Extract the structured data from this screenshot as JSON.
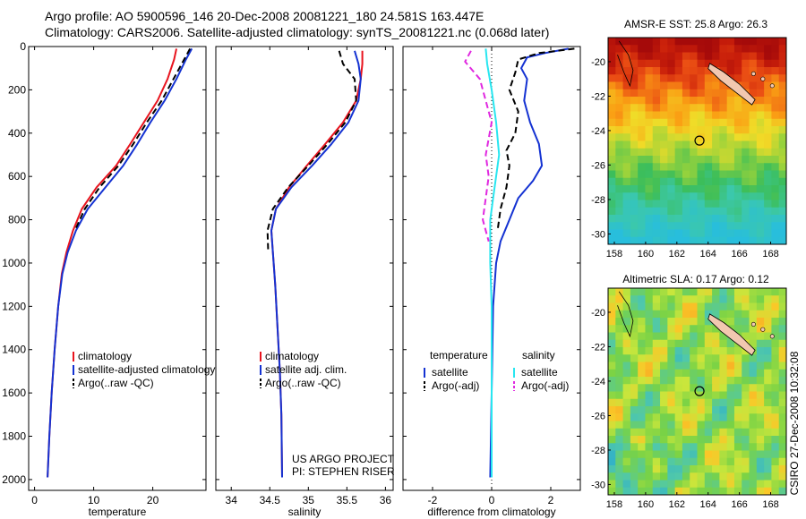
{
  "header": {
    "line1": "Argo profile: AO 5900596_146 20-Dec-2008 20081221_180 24.581S 163.447E",
    "line2": "Climatology: CARS2006. Satellite-adjusted climatology: synTS_20081221.nc (0.068d later)"
  },
  "credit": "CSIRO 27-Dec-2008 10:32:08",
  "project_note": [
    "US ARGO PROJECT",
    "PI: STEPHEN RISER"
  ],
  "colors": {
    "climatology": "#e8141e",
    "satellite": "#1432d2",
    "argo": "#000000",
    "cyan": "#28e6f0",
    "magenta": "#e028e0"
  },
  "chart_data": [
    {
      "type": "line",
      "xlabel": "temperature",
      "ylabel": "",
      "xlim": [
        -1,
        29
      ],
      "ylim": [
        2050,
        0
      ],
      "y_reversed": true,
      "xticks": [
        0,
        10,
        20
      ],
      "yticks": [
        0,
        200,
        400,
        600,
        800,
        1000,
        1200,
        1400,
        1600,
        1800,
        2000
      ],
      "legend": [
        "climatology",
        "satellite-adjusted climatology",
        "Argo(..raw -QC)"
      ],
      "series": [
        {
          "name": "climatology",
          "color": "#e8141e",
          "style": "solid",
          "points": [
            [
              24.0,
              10
            ],
            [
              23.6,
              60
            ],
            [
              22.5,
              150
            ],
            [
              20.8,
              250
            ],
            [
              18.5,
              350
            ],
            [
              16.2,
              450
            ],
            [
              13.8,
              550
            ],
            [
              10.5,
              650
            ],
            [
              8.0,
              750
            ],
            [
              6.5,
              850
            ],
            [
              5.4,
              950
            ],
            [
              4.6,
              1050
            ],
            [
              4.0,
              1200
            ],
            [
              3.4,
              1400
            ],
            [
              2.9,
              1600
            ],
            [
              2.5,
              1800
            ],
            [
              2.2,
              1990
            ]
          ]
        },
        {
          "name": "satellite-adjusted climatology",
          "color": "#1432d2",
          "style": "solid",
          "points": [
            [
              26.6,
              10
            ],
            [
              25.6,
              60
            ],
            [
              24.0,
              150
            ],
            [
              22.0,
              250
            ],
            [
              19.6,
              350
            ],
            [
              17.4,
              450
            ],
            [
              15.0,
              550
            ],
            [
              12.0,
              650
            ],
            [
              9.0,
              750
            ],
            [
              7.0,
              850
            ],
            [
              5.6,
              950
            ],
            [
              4.7,
              1050
            ],
            [
              4.0,
              1200
            ],
            [
              3.4,
              1400
            ],
            [
              2.9,
              1600
            ],
            [
              2.5,
              1800
            ],
            [
              2.2,
              1990
            ]
          ]
        },
        {
          "name": "Argo(..raw -QC)",
          "color": "#000000",
          "style": "dashed",
          "points": [
            [
              26.3,
              10
            ],
            [
              25.3,
              60
            ],
            [
              23.5,
              150
            ],
            [
              21.5,
              250
            ],
            [
              19.0,
              350
            ],
            [
              16.7,
              450
            ],
            [
              14.2,
              550
            ],
            [
              11.0,
              650
            ],
            [
              8.5,
              750
            ],
            [
              6.8,
              850
            ]
          ]
        }
      ]
    },
    {
      "type": "line",
      "xlabel": "salinity",
      "xlim": [
        33.8,
        36.1
      ],
      "ylim": [
        2050,
        0
      ],
      "y_reversed": true,
      "xticks": [
        34,
        34.5,
        35,
        35.5,
        36
      ],
      "legend": [
        "climatology",
        "satellite adj. clim.",
        "Argo(..raw -QC)"
      ],
      "series": [
        {
          "name": "climatology",
          "color": "#e8141e",
          "style": "solid",
          "points": [
            [
              35.7,
              20
            ],
            [
              35.7,
              80
            ],
            [
              35.68,
              150
            ],
            [
              35.62,
              250
            ],
            [
              35.45,
              350
            ],
            [
              35.22,
              450
            ],
            [
              34.98,
              550
            ],
            [
              34.75,
              650
            ],
            [
              34.58,
              750
            ],
            [
              34.52,
              850
            ],
            [
              34.54,
              950
            ],
            [
              34.57,
              1100
            ],
            [
              34.6,
              1300
            ],
            [
              34.63,
              1500
            ],
            [
              34.65,
              1700
            ],
            [
              34.66,
              1990
            ]
          ]
        },
        {
          "name": "satellite adj. clim.",
          "color": "#1432d2",
          "style": "solid",
          "points": [
            [
              35.6,
              20
            ],
            [
              35.65,
              80
            ],
            [
              35.68,
              150
            ],
            [
              35.65,
              250
            ],
            [
              35.52,
              350
            ],
            [
              35.3,
              450
            ],
            [
              35.05,
              550
            ],
            [
              34.78,
              650
            ],
            [
              34.58,
              750
            ],
            [
              34.52,
              850
            ],
            [
              34.54,
              950
            ],
            [
              34.57,
              1100
            ],
            [
              34.6,
              1300
            ],
            [
              34.63,
              1500
            ],
            [
              34.65,
              1700
            ],
            [
              34.66,
              1990
            ]
          ]
        },
        {
          "name": "Argo(..raw -QC)",
          "color": "#000000",
          "style": "dashed",
          "points": [
            [
              35.4,
              20
            ],
            [
              35.45,
              80
            ],
            [
              35.6,
              150
            ],
            [
              35.62,
              250
            ],
            [
              35.48,
              350
            ],
            [
              35.25,
              450
            ],
            [
              35.0,
              550
            ],
            [
              34.74,
              650
            ],
            [
              34.54,
              750
            ],
            [
              34.47,
              850
            ],
            [
              34.48,
              950
            ]
          ]
        }
      ]
    },
    {
      "type": "line",
      "xlabel": "difference from climatology",
      "xlim": [
        -3,
        3
      ],
      "ylim": [
        2050,
        0
      ],
      "y_reversed": true,
      "xticks": [
        -2,
        0,
        2
      ],
      "legend_title": [
        "temperature",
        "salinity"
      ],
      "legend": [
        "satellite",
        "Argo(-adj)",
        "satellite",
        "Argo(-adj)"
      ],
      "series": [
        {
          "name": "temperature satellite",
          "color": "#1432d2",
          "style": "solid",
          "points": [
            [
              2.6,
              10
            ],
            [
              1.8,
              30
            ],
            [
              1.2,
              50
            ],
            [
              1.0,
              100
            ],
            [
              1.2,
              150
            ],
            [
              1.1,
              250
            ],
            [
              1.3,
              350
            ],
            [
              1.6,
              450
            ],
            [
              1.7,
              550
            ],
            [
              1.4,
              620
            ],
            [
              0.9,
              700
            ],
            [
              0.6,
              800
            ],
            [
              0.3,
              900
            ],
            [
              0.15,
              1000
            ],
            [
              0.05,
              1200
            ],
            [
              0.0,
              1600
            ],
            [
              -0.05,
              1990
            ]
          ]
        },
        {
          "name": "temperature Argo(-adj)",
          "color": "#000000",
          "style": "dashed",
          "points": [
            [
              2.8,
              10
            ],
            [
              1.6,
              30
            ],
            [
              0.9,
              60
            ],
            [
              0.8,
              120
            ],
            [
              0.6,
              200
            ],
            [
              0.9,
              300
            ],
            [
              0.8,
              400
            ],
            [
              0.5,
              480
            ],
            [
              0.6,
              550
            ],
            [
              0.5,
              650
            ],
            [
              0.3,
              750
            ],
            [
              0.2,
              850
            ]
          ]
        },
        {
          "name": "salinity satellite",
          "color": "#28e6f0",
          "style": "solid",
          "points": [
            [
              -0.2,
              10
            ],
            [
              -0.15,
              80
            ],
            [
              0.0,
              200
            ],
            [
              0.15,
              350
            ],
            [
              0.25,
              500
            ],
            [
              0.1,
              650
            ],
            [
              -0.05,
              800
            ],
            [
              -0.05,
              1000
            ],
            [
              0.0,
              1200
            ],
            [
              0.0,
              1600
            ],
            [
              0.0,
              1990
            ]
          ]
        },
        {
          "name": "salinity Argo(-adj)",
          "color": "#e028e0",
          "style": "dashed",
          "points": [
            [
              -0.7,
              20
            ],
            [
              -0.9,
              70
            ],
            [
              -0.4,
              150
            ],
            [
              -0.2,
              250
            ],
            [
              0.0,
              350
            ],
            [
              -0.2,
              500
            ],
            [
              -0.1,
              600
            ],
            [
              -0.2,
              700
            ],
            [
              -0.3,
              800
            ],
            [
              -0.1,
              900
            ]
          ]
        }
      ]
    },
    {
      "type": "heatmap",
      "title": "AMSR-E SST: 25.8 Argo: 26.3",
      "xlim": [
        157.6,
        169
      ],
      "ylim": [
        -30.6,
        -18.6
      ],
      "xticks": [
        158,
        160,
        162,
        164,
        166,
        168
      ],
      "yticks": [
        -20,
        -22,
        -24,
        -26,
        -28,
        -30
      ],
      "marker": {
        "lon": 163.447,
        "lat": -24.581
      }
    },
    {
      "type": "heatmap",
      "title": "Altimetric SLA: 0.17 Argo: 0.12",
      "xlim": [
        157.6,
        169
      ],
      "ylim": [
        -30.6,
        -18.6
      ],
      "xticks": [
        158,
        160,
        162,
        164,
        166,
        168
      ],
      "yticks": [
        -20,
        -22,
        -24,
        -26,
        -28,
        -30
      ],
      "marker": {
        "lon": 163.447,
        "lat": -24.581
      }
    }
  ]
}
